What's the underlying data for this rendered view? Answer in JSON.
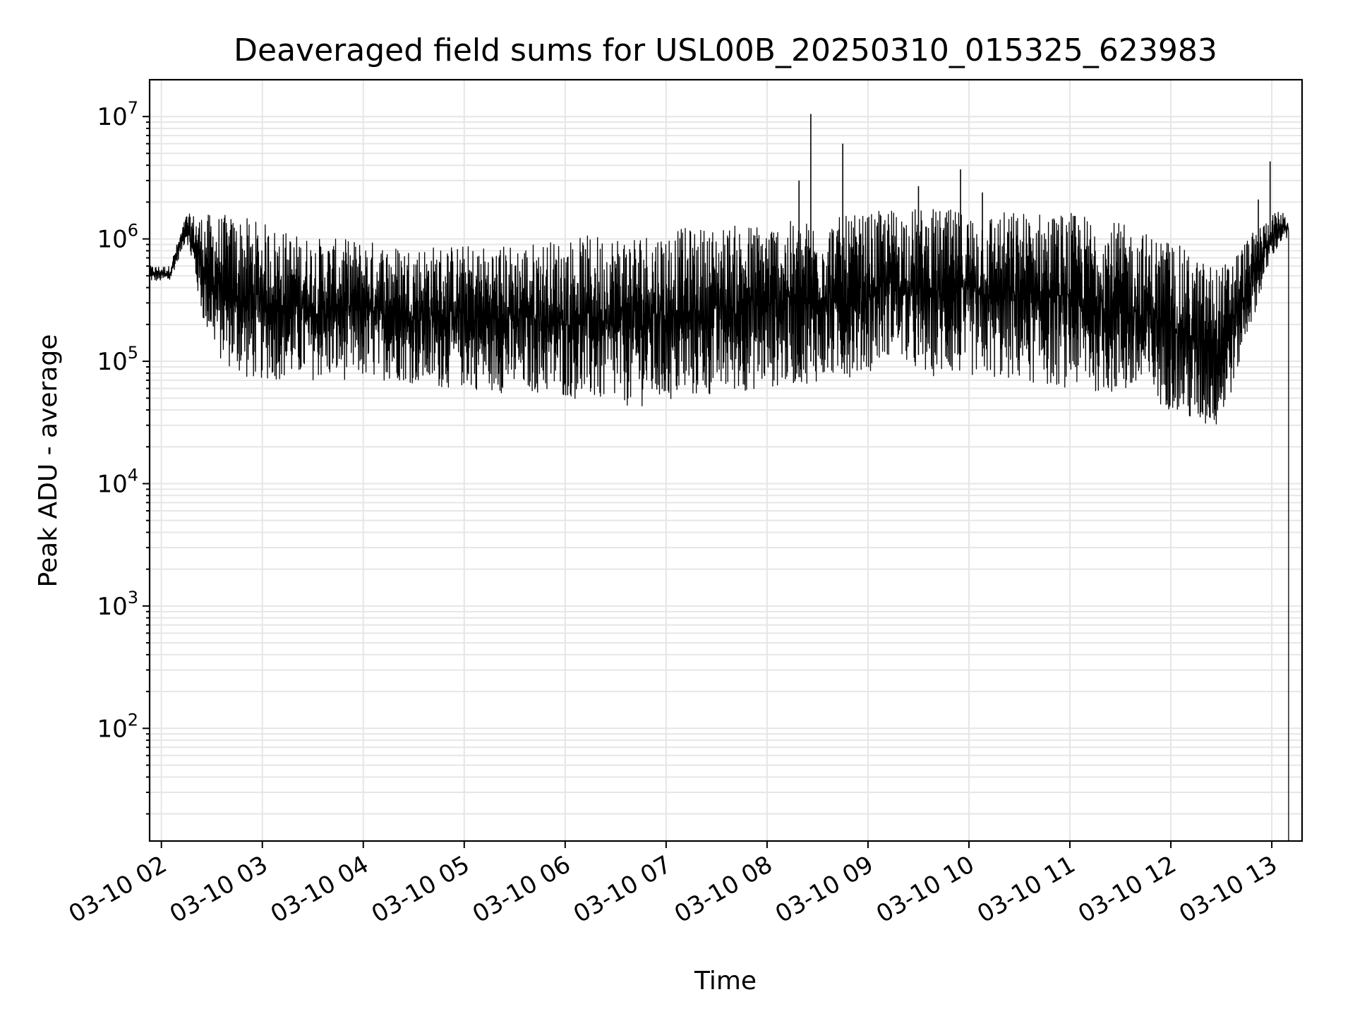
{
  "chart_data": {
    "type": "line",
    "title": "Deaveraged field sums for USL00B_20250310_015325_623983",
    "xlabel": "Time",
    "ylabel": "Peak ADU - average",
    "yscale": "log",
    "ylim": [
      12,
      20000000
    ],
    "xlim": [
      "03-10 01:53",
      "03-10 13:18"
    ],
    "grid": "on (major and minor)",
    "x_ticks": [
      "03-10 02",
      "03-10 03",
      "03-10 04",
      "03-10 05",
      "03-10 06",
      "03-10 07",
      "03-10 08",
      "03-10 09",
      "03-10 10",
      "03-10 11",
      "03-10 12",
      "03-10 13"
    ],
    "y_ticks": [
      {
        "value": 100,
        "base": "10",
        "exp": "2"
      },
      {
        "value": 1000,
        "base": "10",
        "exp": "3"
      },
      {
        "value": 10000,
        "base": "10",
        "exp": "4"
      },
      {
        "value": 100000,
        "base": "10",
        "exp": "5"
      },
      {
        "value": 1000000,
        "base": "10",
        "exp": "6"
      },
      {
        "value": 10000000,
        "base": "10",
        "exp": "7"
      }
    ],
    "series": [
      {
        "line_color": "#000000",
        "envelope": {
          "x": [
            "03-10 01:53",
            "03-10 02:05",
            "03-10 02:15",
            "03-10 02:25",
            "03-10 02:35",
            "03-10 02:50",
            "03-10 03:05",
            "03-10 03:20",
            "03-10 03:40",
            "03-10 04:00",
            "03-10 04:20",
            "03-10 04:40",
            "03-10 05:00",
            "03-10 05:20",
            "03-10 05:40",
            "03-10 06:00",
            "03-10 06:20",
            "03-10 06:40",
            "03-10 07:00",
            "03-10 07:20",
            "03-10 07:40",
            "03-10 08:00",
            "03-10 08:20",
            "03-10 08:40",
            "03-10 09:00",
            "03-10 09:15",
            "03-10 09:30",
            "03-10 09:45",
            "03-10 10:00",
            "03-10 10:20",
            "03-10 10:40",
            "03-10 11:00",
            "03-10 11:20",
            "03-10 11:40",
            "03-10 12:00",
            "03-10 12:15",
            "03-10 12:30",
            "03-10 12:45",
            "03-10 13:00",
            "03-10 13:05",
            "03-10 13:10"
          ],
          "low": [
            450000,
            450000,
            1000000,
            200000,
            100000,
            70000,
            70000,
            70000,
            70000,
            70000,
            70000,
            60000,
            60000,
            55000,
            55000,
            50000,
            45000,
            42000,
            45000,
            50000,
            55000,
            60000,
            65000,
            70000,
            80000,
            120000,
            75000,
            75000,
            75000,
            70000,
            65000,
            60000,
            55000,
            50000,
            40000,
            28000,
            28000,
            150000,
            700000,
            900000,
            1000000
          ],
          "high": [
            600000,
            600000,
            1600000,
            1600000,
            1600000,
            1500000,
            1300000,
            1100000,
            1000000,
            1000000,
            900000,
            900000,
            900000,
            900000,
            950000,
            1000000,
            1100000,
            1150000,
            1200000,
            1250000,
            1300000,
            1400000,
            1400000,
            1500000,
            1600000,
            1800000,
            1800000,
            1750000,
            1700000,
            1700000,
            1700000,
            1650000,
            1500000,
            1200000,
            1000000,
            700000,
            600000,
            1000000,
            1600000,
            1700000,
            1500000
          ]
        },
        "spikes": [
          {
            "x": "03-10 08:19",
            "y": 3000000
          },
          {
            "x": "03-10 08:26",
            "y": 10500000
          },
          {
            "x": "03-10 08:45",
            "y": 6000000
          },
          {
            "x": "03-10 09:30",
            "y": 2700000
          },
          {
            "x": "03-10 09:55",
            "y": 3700000
          },
          {
            "x": "03-10 10:08",
            "y": 2400000
          },
          {
            "x": "03-10 12:52",
            "y": 2100000
          },
          {
            "x": "03-10 12:59",
            "y": 4300000
          }
        ],
        "end_drop": {
          "x": "03-10 13:10",
          "y": 12
        }
      }
    ]
  }
}
